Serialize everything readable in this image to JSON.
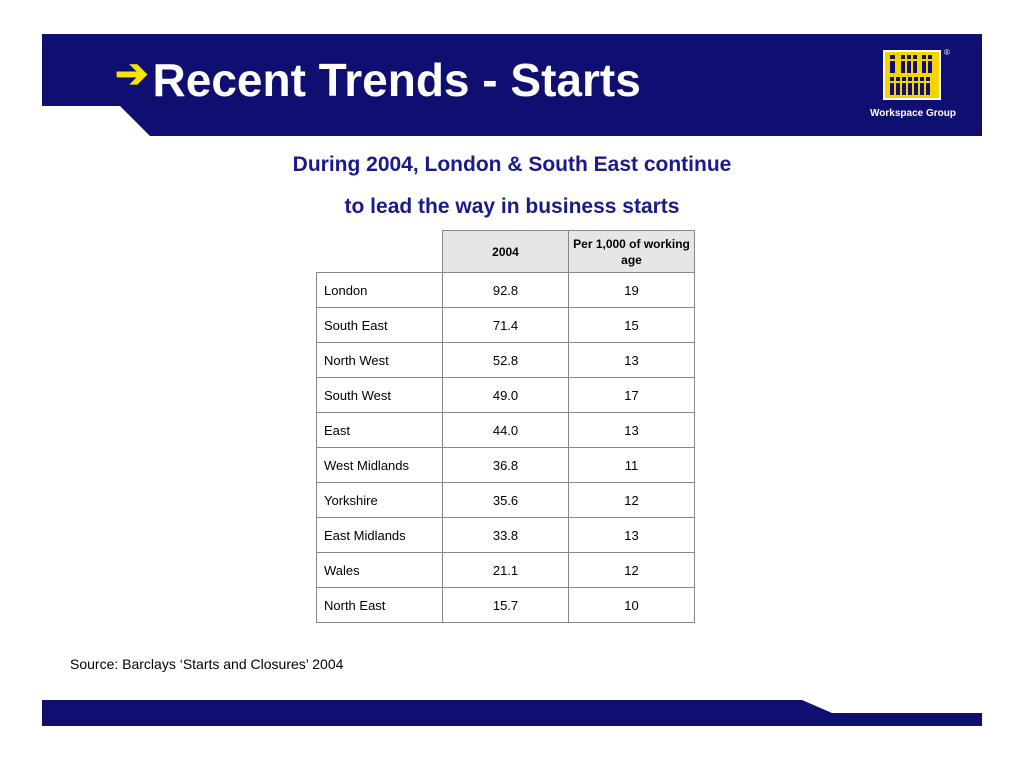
{
  "header": {
    "title": "Recent Trends - Starts",
    "arrow": "➔",
    "logo_text": "Workspace Group",
    "logo_mark": "®"
  },
  "subtitle": {
    "line1": "During 2004, London & South East continue",
    "line2": "to lead the way in business starts"
  },
  "table": {
    "headers": [
      "",
      "2004",
      "Per 1,000 of working age"
    ],
    "rows": [
      {
        "region": "London",
        "y2004": "92.8",
        "per1000": "19"
      },
      {
        "region": "South East",
        "y2004": "71.4",
        "per1000": "15"
      },
      {
        "region": "North West",
        "y2004": "52.8",
        "per1000": "13"
      },
      {
        "region": "South West",
        "y2004": "49.0",
        "per1000": "17"
      },
      {
        "region": "East",
        "y2004": "44.0",
        "per1000": "13"
      },
      {
        "region": "West Midlands",
        "y2004": "36.8",
        "per1000": "11"
      },
      {
        "region": "Yorkshire",
        "y2004": "35.6",
        "per1000": "12"
      },
      {
        "region": "East Midlands",
        "y2004": "33.8",
        "per1000": "13"
      },
      {
        "region": "Wales",
        "y2004": "21.1",
        "per1000": "12"
      },
      {
        "region": "North East",
        "y2004": "15.7",
        "per1000": "10"
      }
    ]
  },
  "source": "Source: Barclays ‘Starts and Closures’ 2004",
  "colors": {
    "navy": "#0f0f72",
    "accent_yellow": "#f5e600",
    "subtitle_blue": "#1a1a8c"
  }
}
